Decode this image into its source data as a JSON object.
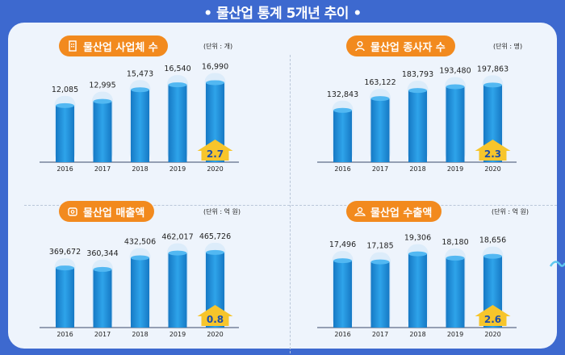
{
  "title": "• 물산업 통계 5개년 추이 •",
  "colors": {
    "bar": "#1e8fd8",
    "bar_top": "#dcecfa",
    "accent": "#f28a1e",
    "arrow": "#f7c52b"
  },
  "chart_data": [
    {
      "type": "bar",
      "title": "물산업 사업체 수",
      "unit": "(단위 : 개)",
      "icon": "building-icon",
      "categories": [
        "2016",
        "2017",
        "2018",
        "2019",
        "2020"
      ],
      "values": [
        12085,
        12995,
        15473,
        16540,
        16990
      ],
      "labels": [
        "12,085",
        "12,995",
        "15,473",
        "16,540",
        "16,990"
      ],
      "growth": "2.7",
      "ylim": [
        0,
        20000
      ]
    },
    {
      "type": "bar",
      "title": "물산업 종사자 수",
      "unit": "(단위 : 명)",
      "icon": "person-icon",
      "categories": [
        "2016",
        "2017",
        "2018",
        "2019",
        "2020"
      ],
      "values": [
        132843,
        163122,
        183793,
        193480,
        197863
      ],
      "labels": [
        "132,843",
        "163,122",
        "183,793",
        "193,480",
        "197,863"
      ],
      "growth": "2.3",
      "ylim": [
        0,
        240000
      ]
    },
    {
      "type": "bar",
      "title": "물산업 매출액",
      "unit": "(단위 : 억 원)",
      "icon": "money-icon",
      "categories": [
        "2016",
        "2017",
        "2018",
        "2019",
        "2020"
      ],
      "values": [
        369672,
        360344,
        432506,
        462017,
        465726
      ],
      "labels": [
        "369,672",
        "360,344",
        "432,506",
        "462,017",
        "465,726"
      ],
      "growth": "0.8",
      "ylim": [
        0,
        580000
      ]
    },
    {
      "type": "bar",
      "title": "물산업 수출액",
      "unit": "(단위 : 억 원)",
      "icon": "export-icon",
      "categories": [
        "2016",
        "2017",
        "2018",
        "2019",
        "2020"
      ],
      "values": [
        17496,
        17185,
        19306,
        18180,
        18656
      ],
      "labels": [
        "17,496",
        "17,185",
        "19,306",
        "18,180",
        "18,656"
      ],
      "growth": "2.6",
      "ylim": [
        0,
        24500
      ]
    }
  ]
}
